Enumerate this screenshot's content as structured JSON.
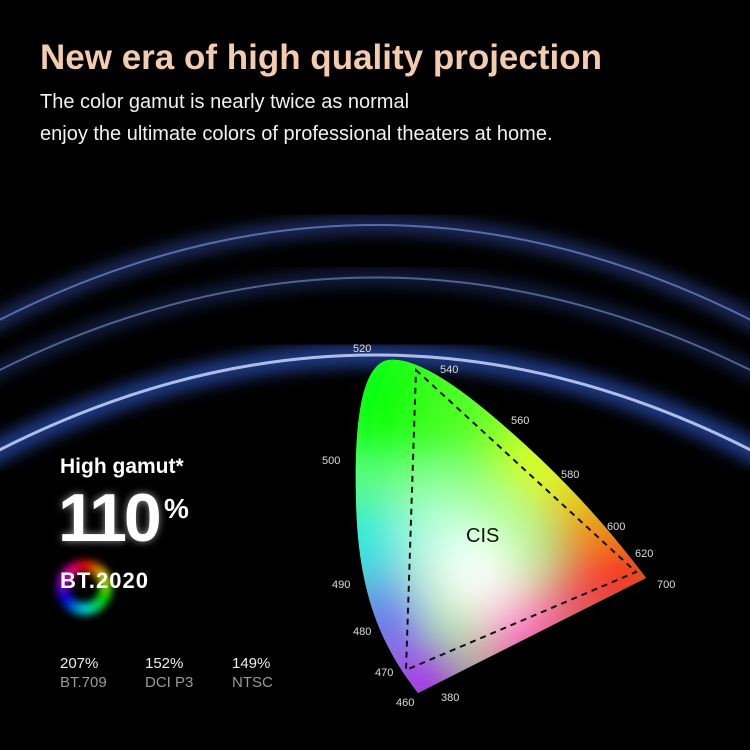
{
  "headline": "New era of high quality projection",
  "subtitle_lines": [
    "The color gamut is nearly twice as normal",
    "enjoy the ultimate colors of professional theaters at home."
  ],
  "colors": {
    "headline": "#f3cbad",
    "background": "#000000"
  },
  "gamut": {
    "label": "High gamut*",
    "value": "110",
    "unit": "%",
    "standard": "BT.2020"
  },
  "comparisons": [
    {
      "value": "207%",
      "label": "BT.709"
    },
    {
      "value": "152%",
      "label": "DCI P3"
    },
    {
      "value": "149%",
      "label": "NTSC"
    }
  ],
  "diagram": {
    "center_label": "CIS",
    "wavelengths": [
      "520",
      "540",
      "560",
      "580",
      "600",
      "620",
      "700",
      "500",
      "490",
      "480",
      "470",
      "460",
      "380"
    ]
  }
}
